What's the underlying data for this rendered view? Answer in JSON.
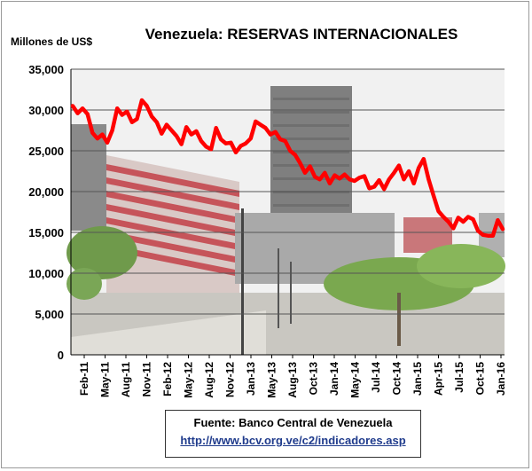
{
  "chart_data": {
    "type": "line",
    "title": "Venezuela: RESERVAS INTERNACIONALES",
    "ylabel": "Millones de US$",
    "xlabel": "",
    "ylim": [
      0,
      35000
    ],
    "yticks": [
      "0",
      "5,000",
      "10,000",
      "15,000",
      "20,000",
      "25,000",
      "30,000",
      "35,000"
    ],
    "xticks": [
      "Feb-11",
      "May-11",
      "Aug-11",
      "Nov-11",
      "Feb-12",
      "May-12",
      "Aug-12",
      "Nov-12",
      "Jan-13",
      "May-13",
      "Aug-13",
      "Oct-13",
      "Jan-14",
      "May-14",
      "Jul-14",
      "Oct-14",
      "Jan-15",
      "Apr-15",
      "Jul-15",
      "Oct-15",
      "Jan-16"
    ],
    "grid": true,
    "legend": "none",
    "line_color": "#ff0000",
    "series": [
      {
        "values": [
          30500,
          29600,
          30200,
          29500,
          27200,
          26500,
          27000,
          26000,
          27500,
          30200,
          29400,
          29800,
          28500,
          28900,
          31200,
          30500,
          29200,
          28500,
          27100,
          28200,
          27500,
          26800,
          25800,
          27900,
          27000,
          27400,
          26200,
          25500,
          25200,
          27800,
          26400,
          25900,
          26000,
          24800,
          25600,
          25900,
          26500,
          28600,
          28200,
          27800,
          27000,
          27300,
          26400,
          26200,
          25000,
          24500,
          23500,
          22300,
          23100,
          21800,
          21500,
          22300,
          21000,
          22000,
          21600,
          22100,
          21500,
          21300,
          21700,
          21900,
          20400,
          20600,
          21400,
          20300,
          21500,
          22300,
          23200,
          21500,
          22500,
          21000,
          22900,
          24000,
          21500,
          19500,
          17600,
          16900,
          16300,
          15500,
          16800,
          16300,
          16900,
          16600,
          15200,
          14700,
          14600,
          14600,
          16500,
          15400
        ]
      }
    ]
  },
  "source": {
    "line1": "Fuente: Banco Central  de Venezuela",
    "line2": "http://www.bcv.org.ve/c2/indicadores.asp"
  },
  "background": {
    "description_colors": {
      "sky": "#f2f2f2",
      "building": "#8e8e8e",
      "stripes_red": "#c9545a",
      "trees": "#6e9a4c",
      "plaza": "#c8c6c0"
    }
  }
}
